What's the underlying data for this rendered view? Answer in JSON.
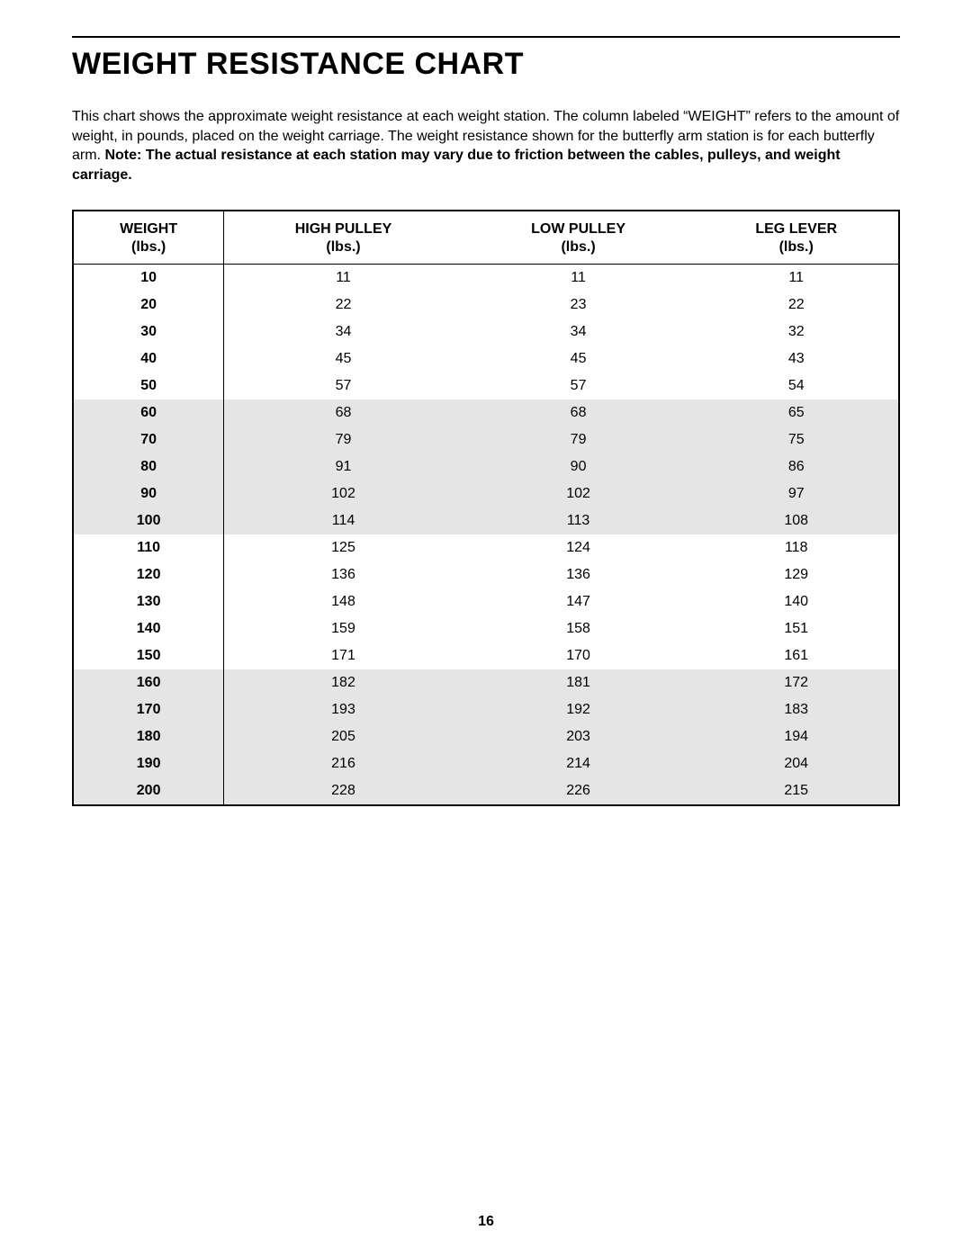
{
  "title": "WEIGHT RESISTANCE CHART",
  "intro_plain1": "This chart shows the approximate weight resistance at each weight station. The column labeled “WEIGHT” refers to the amount of weight, in pounds, placed on the weight carriage. The weight resistance shown for the butterfly arm station is for each butterfly arm. ",
  "intro_bold": "Note: The actual resistance at each station may vary due to friction between the cables, pulleys, and weight carriage.",
  "page_number": "16",
  "table": {
    "type": "table",
    "background_color": "#ffffff",
    "shade_color": "#e5e5e5",
    "border_color": "#000000",
    "header_fontweight": "bold",
    "cell_fontsize": 16,
    "columns": [
      {
        "label": "WEIGHT",
        "sub": "(lbs.)",
        "bold_cells": true,
        "right_sep": true
      },
      {
        "label": "HIGH PULLEY",
        "sub": "(lbs.)",
        "bold_cells": false,
        "right_sep": false
      },
      {
        "label": "LOW PULLEY",
        "sub": "(lbs.)",
        "bold_cells": false,
        "right_sep": false
      },
      {
        "label": "LEG  LEVER",
        "sub": "(lbs.)",
        "bold_cells": false,
        "right_sep": false
      }
    ],
    "shaded_row_groups": [
      [
        5,
        9
      ],
      [
        15,
        19
      ]
    ],
    "rows": [
      [
        "10",
        "11",
        "11",
        "11"
      ],
      [
        "20",
        "22",
        "23",
        "22"
      ],
      [
        "30",
        "34",
        "34",
        "32"
      ],
      [
        "40",
        "45",
        "45",
        "43"
      ],
      [
        "50",
        "57",
        "57",
        "54"
      ],
      [
        "60",
        "68",
        "68",
        "65"
      ],
      [
        "70",
        "79",
        "79",
        "75"
      ],
      [
        "80",
        "91",
        "90",
        "86"
      ],
      [
        "90",
        "102",
        "102",
        "97"
      ],
      [
        "100",
        "114",
        "113",
        "108"
      ],
      [
        "110",
        "125",
        "124",
        "118"
      ],
      [
        "120",
        "136",
        "136",
        "129"
      ],
      [
        "130",
        "148",
        "147",
        "140"
      ],
      [
        "140",
        "159",
        "158",
        "151"
      ],
      [
        "150",
        "171",
        "170",
        "161"
      ],
      [
        "160",
        "182",
        "181",
        "172"
      ],
      [
        "170",
        "193",
        "192",
        "183"
      ],
      [
        "180",
        "205",
        "203",
        "194"
      ],
      [
        "190",
        "216",
        "214",
        "204"
      ],
      [
        "200",
        "228",
        "226",
        "215"
      ]
    ]
  }
}
